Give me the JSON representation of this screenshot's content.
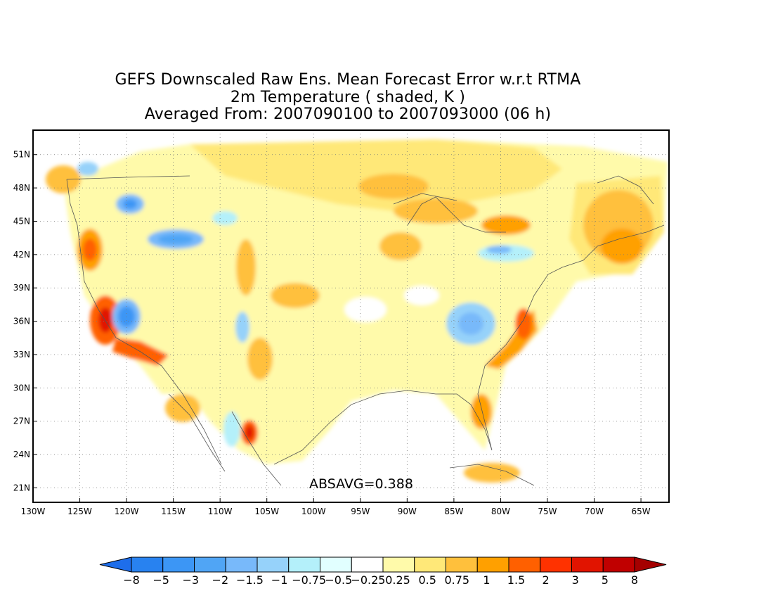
{
  "title": {
    "line1": "GEFS Downscaled Raw Ens. Mean Forecast Error w.r.t RTMA",
    "line2": "2m Temperature ( shaded, K )",
    "line3": "Averaged From: 2007090100 to 2007093000 (06 h)"
  },
  "annotation": "ABSAVG=0.388",
  "map": {
    "lon_range": [
      -130,
      -62
    ],
    "lat_range": [
      19.7,
      53.2
    ],
    "lat_ticks": [
      {
        "value": 51,
        "label": "51N"
      },
      {
        "value": 48,
        "label": "48N"
      },
      {
        "value": 45,
        "label": "45N"
      },
      {
        "value": 42,
        "label": "42N"
      },
      {
        "value": 39,
        "label": "39N"
      },
      {
        "value": 36,
        "label": "36N"
      },
      {
        "value": 33,
        "label": "33N"
      },
      {
        "value": 30,
        "label": "30N"
      },
      {
        "value": 27,
        "label": "27N"
      },
      {
        "value": 24,
        "label": "24N"
      },
      {
        "value": 21,
        "label": "21N"
      }
    ],
    "lon_ticks": [
      {
        "value": -130,
        "label": "130W"
      },
      {
        "value": -125,
        "label": "125W"
      },
      {
        "value": -120,
        "label": "120W"
      },
      {
        "value": -115,
        "label": "115W"
      },
      {
        "value": -110,
        "label": "110W"
      },
      {
        "value": -105,
        "label": "105W"
      },
      {
        "value": -100,
        "label": "100W"
      },
      {
        "value": -95,
        "label": "95W"
      },
      {
        "value": -90,
        "label": "90W"
      },
      {
        "value": -85,
        "label": "85W"
      },
      {
        "value": -80,
        "label": "80W"
      },
      {
        "value": -75,
        "label": "75W"
      },
      {
        "value": -70,
        "label": "70W"
      },
      {
        "value": -65,
        "label": "65W"
      }
    ],
    "grid": true
  },
  "colorbar": {
    "labels": [
      "−8",
      "−5",
      "−3",
      "−2",
      "−1.5",
      "−1",
      "−0.75",
      "−0.5",
      "−0.25",
      "0.25",
      "0.5",
      "0.75",
      "1",
      "1.5",
      "2",
      "3",
      "5",
      "8"
    ],
    "colors": [
      "#1e6eeb",
      "#2882f0",
      "#3c96f5",
      "#50a5f5",
      "#78b9fa",
      "#96d2fa",
      "#b4f0fa",
      "#e1ffff",
      "#ffffff",
      "#fffaaa",
      "#ffe878",
      "#ffc03c",
      "#ffa000",
      "#ff6000",
      "#ff3200",
      "#e11400",
      "#c00000",
      "#a50000"
    ]
  }
}
